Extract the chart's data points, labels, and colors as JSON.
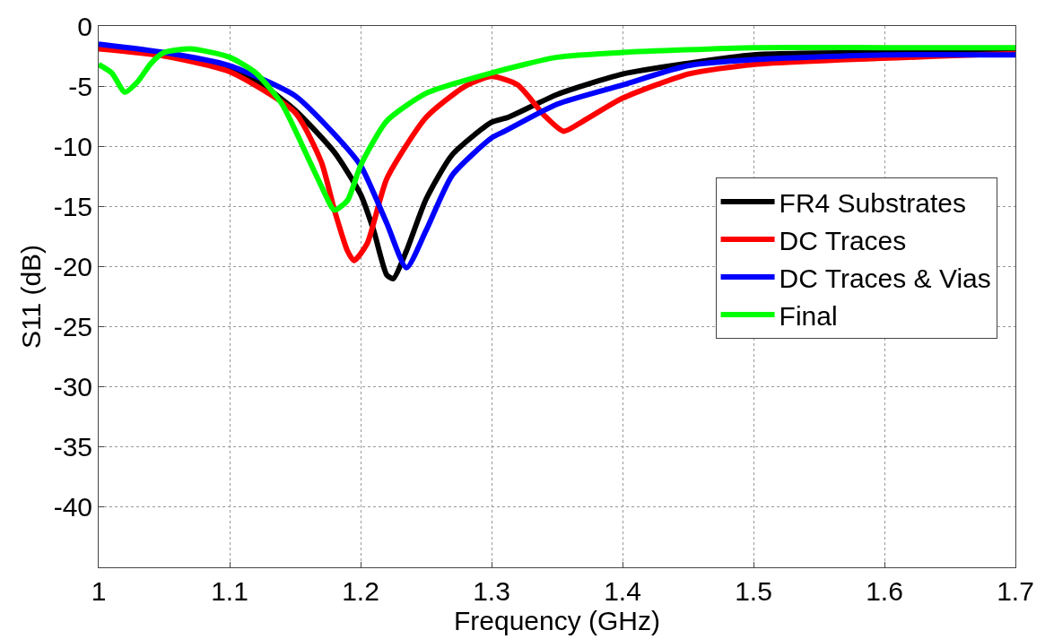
{
  "chart_data": {
    "type": "line",
    "xlabel": "Frequency (GHz)",
    "ylabel": "S11 (dB)",
    "xlim": [
      1,
      1.7
    ],
    "xticks": [
      1,
      1.1,
      1.2,
      1.3,
      1.4,
      1.5,
      1.6,
      1.7
    ],
    "ylim": [
      -45,
      0
    ],
    "yticks": [
      0,
      -5,
      -10,
      -15,
      -20,
      -25,
      -30,
      -35,
      -40
    ],
    "grid": true,
    "legend": "right",
    "line_style": "solid",
    "marker": "none",
    "series": [
      {
        "name": "FR4 Substrates",
        "color": "#000000",
        "x": [
          1.0,
          1.05,
          1.1,
          1.12,
          1.15,
          1.18,
          1.2,
          1.21,
          1.22,
          1.225,
          1.235,
          1.25,
          1.27,
          1.3,
          1.3125,
          1.35,
          1.4,
          1.45,
          1.5,
          1.6,
          1.7
        ],
        "values": [
          -1.6,
          null,
          -3.5,
          -4.5,
          -7,
          -10.5,
          -14,
          -17,
          -20.7,
          -21,
          -18.7,
          -14.4,
          -10.7,
          -8,
          -7.6,
          -5.7,
          -4.0,
          -3.1,
          -2.4,
          -2.2,
          -2.2
        ]
      },
      {
        "name": "DC Traces",
        "color": "#ff0000",
        "x": [
          1.0,
          1.05,
          1.1,
          1.15,
          1.17,
          1.18,
          1.19,
          1.195,
          1.205,
          1.22,
          1.25,
          1.28,
          1.3,
          1.32,
          1.34,
          1.355,
          1.37,
          1.4,
          1.45,
          1.5,
          1.6,
          1.7
        ],
        "values": [
          -1.9,
          -2.5,
          -3.8,
          -7.2,
          -11.3,
          -15.3,
          -18.7,
          -19.5,
          -18.1,
          -12.7,
          -7.6,
          -5,
          -4.2,
          -4.9,
          -7.4,
          -8.75,
          -7.9,
          -6,
          -4,
          -3.2,
          null,
          -2.3
        ]
      },
      {
        "name": "DC Traces & Vias",
        "color": "#0000ff",
        "x": [
          1.0,
          1.05,
          1.1,
          1.15,
          1.18,
          1.2,
          1.22,
          1.235,
          1.25,
          1.27,
          1.3,
          1.31,
          1.35,
          1.4,
          1.45,
          1.5,
          1.6,
          1.7
        ],
        "values": [
          -1.5,
          -2.2,
          -3.3,
          -5.8,
          -9,
          -11.6,
          -16.4,
          -20.1,
          -17,
          -12.4,
          -9.3,
          -8.75,
          -6.5,
          -4.9,
          -3.3,
          -2.8,
          -2.4,
          -2.4
        ]
      },
      {
        "name": "Final",
        "color": "#00ff00",
        "x": [
          1.0,
          1.01,
          1.02,
          1.03,
          1.04,
          1.05,
          1.07,
          1.1,
          1.12,
          1.14,
          1.16,
          1.17,
          1.18,
          1.19,
          1.2,
          1.22,
          1.25,
          1.3,
          1.35,
          1.4,
          1.5,
          1.6,
          1.7
        ],
        "values": [
          -3.2,
          -3.9,
          -5.5,
          -4.6,
          -3.1,
          -2.2,
          -1.9,
          -2.6,
          -3.9,
          -6.5,
          -11,
          -13.3,
          -15.3,
          -14.5,
          -11.6,
          -7.9,
          -5.6,
          -3.9,
          -2.6,
          -2.2,
          -1.8,
          -1.8,
          -1.8
        ]
      }
    ]
  }
}
